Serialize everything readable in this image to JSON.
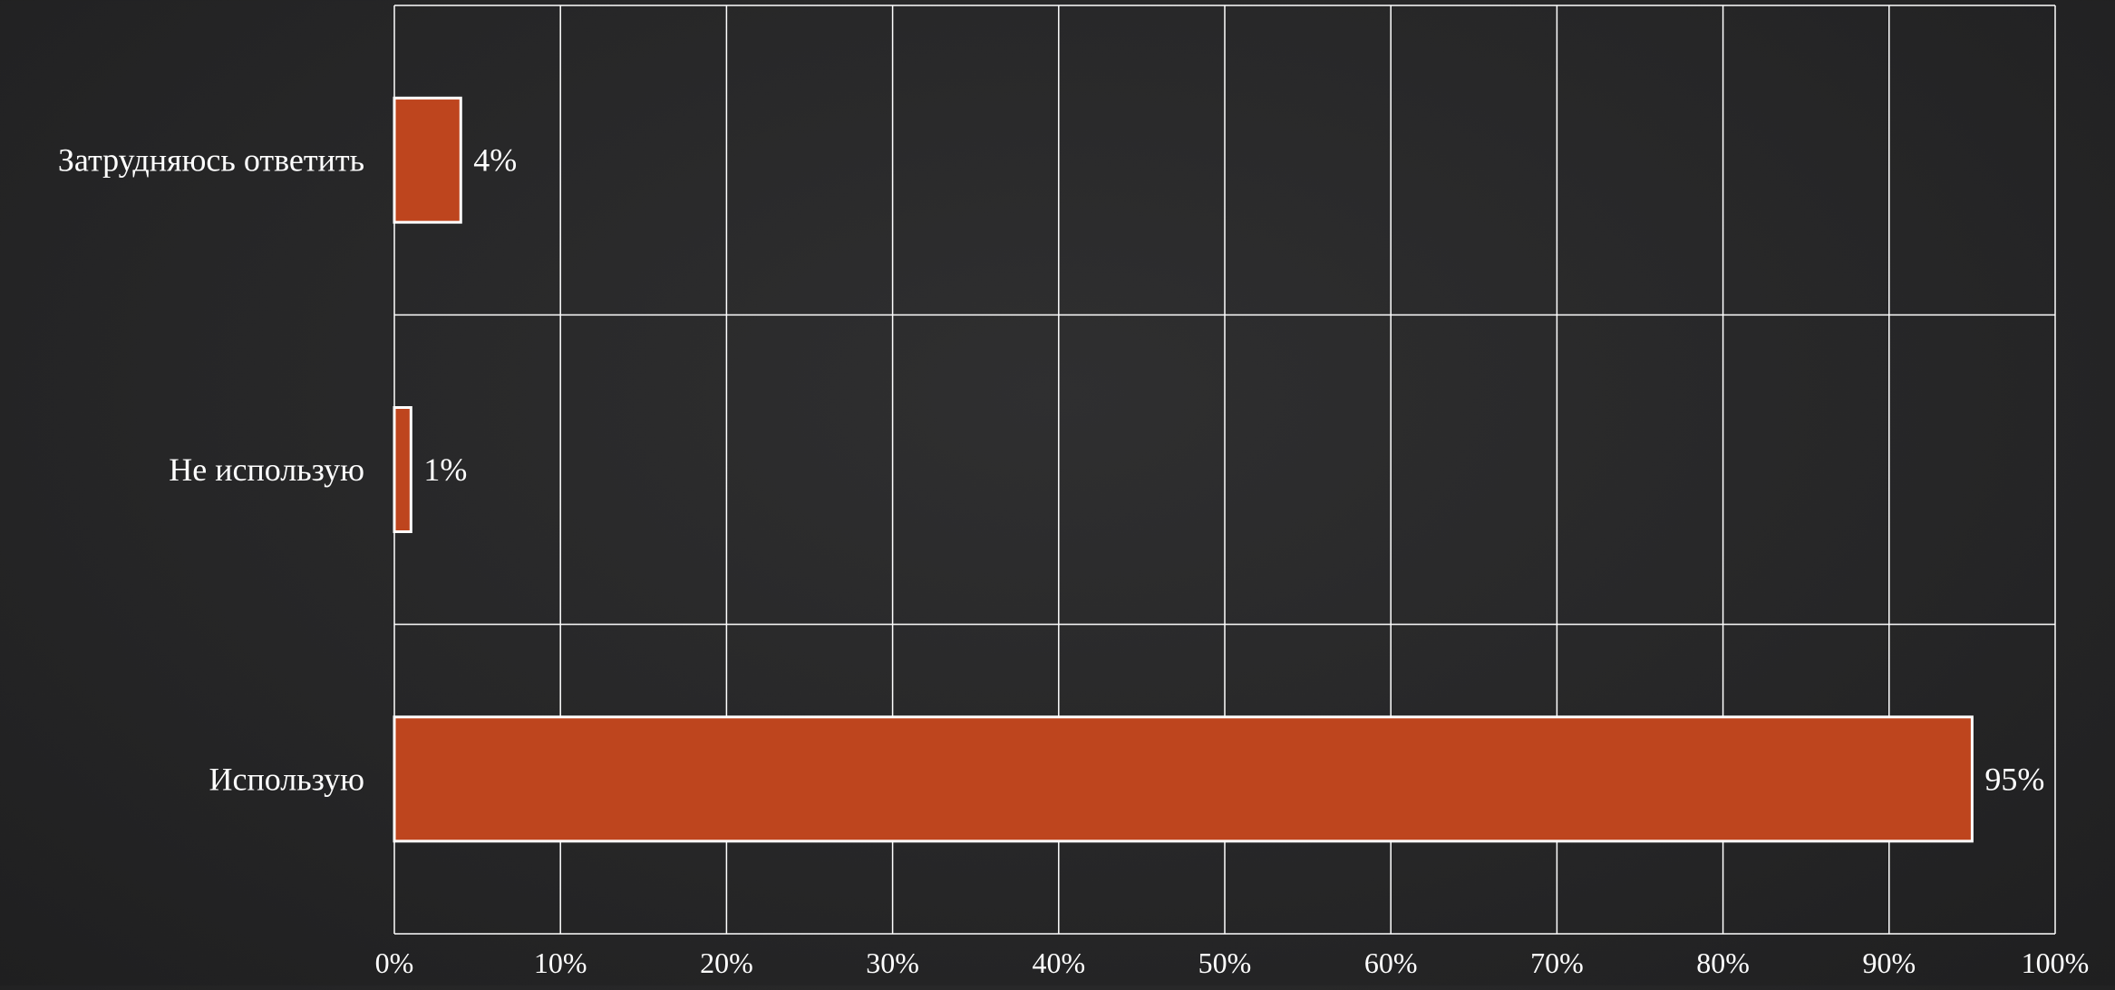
{
  "chart_data": {
    "type": "bar",
    "orientation": "horizontal",
    "categories": [
      "Затрудняюсь ответить",
      "Не использую",
      "Использую"
    ],
    "values": [
      4,
      1,
      95
    ],
    "data_labels": [
      "4%",
      "1%",
      "95%"
    ],
    "xlim": [
      0,
      100
    ],
    "x_ticks": [
      0,
      10,
      20,
      30,
      40,
      50,
      60,
      70,
      80,
      90,
      100
    ],
    "x_tick_labels": [
      "0%",
      "10%",
      "20%",
      "30%",
      "40%",
      "50%",
      "60%",
      "70%",
      "80%",
      "90%",
      "100%"
    ],
    "grid": true,
    "legend": "none",
    "colors": {
      "bar": "#BE451E",
      "bar_stroke": "#FFFFFF",
      "grid": "#FFFFFF",
      "text": "#FFFFFF"
    }
  }
}
